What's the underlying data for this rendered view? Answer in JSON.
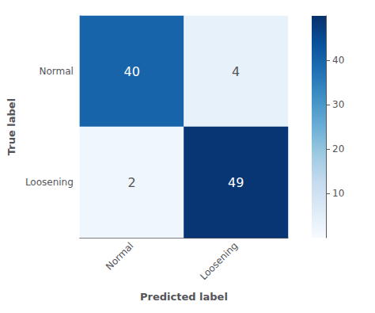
{
  "chart_data": {
    "type": "heatmap",
    "xlabel": "Predicted label",
    "ylabel": "True label",
    "categories": [
      "Normal",
      "Loosening"
    ],
    "matrix": [
      [
        40,
        4
      ],
      [
        2,
        49
      ]
    ],
    "colorbar_range": [
      0,
      50
    ],
    "colorbar_ticks": [
      10,
      20,
      30,
      40
    ],
    "data_labels": true,
    "grid": false
  }
}
